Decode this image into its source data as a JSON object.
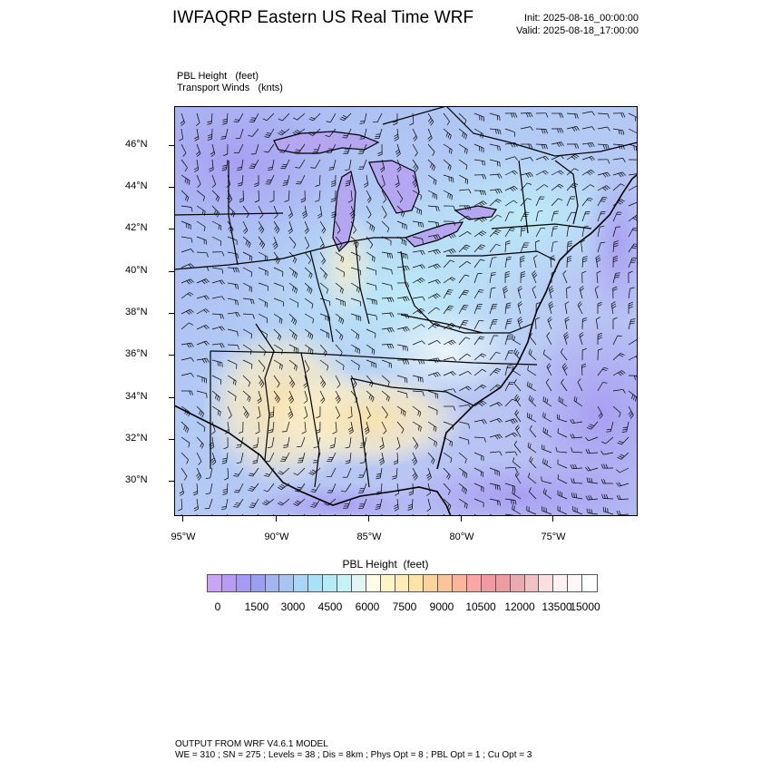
{
  "header": {
    "title": "IWFAQRP Eastern US Real Time WRF",
    "init": "Init: 2025-08-16_00:00:00",
    "valid": "Valid: 2025-08-18_17:00:00"
  },
  "subtitle": {
    "line1": "PBL Height   (feet)",
    "line2": "Transport Winds   (knts)"
  },
  "map": {
    "lat_labels": [
      "46°N",
      "44°N",
      "42°N",
      "40°N",
      "38°N",
      "36°N",
      "34°N",
      "32°N",
      "30°N"
    ],
    "lon_labels": [
      "95°W",
      "90°W",
      "85°W",
      "80°W",
      "75°W"
    ]
  },
  "colorbar": {
    "title": "PBL Height  (feet)",
    "colors": [
      "#c8a5f5",
      "#b89cf3",
      "#a49bf2",
      "#9b9ff0",
      "#a3b4f2",
      "#a7c4f3",
      "#a9d6f6",
      "#a6e3f8",
      "#b3ecf7",
      "#c7f1f7",
      "#e2f5f5",
      "#fffbe6",
      "#fdf5c6",
      "#fdecb5",
      "#fce3a6",
      "#fcd39b",
      "#fcc498",
      "#fcb59a",
      "#f9a6a4",
      "#f29aa1",
      "#eb9da3",
      "#eaaab0",
      "#f1c2c4",
      "#fbdfe0",
      "#fff0f2",
      "#fff7f7",
      "#ffffff"
    ],
    "labels": [
      "0",
      "1500",
      "3000",
      "4500",
      "6000",
      "7500",
      "9000",
      "10500",
      "12000",
      "13500",
      "15000"
    ]
  },
  "footer": {
    "line1": "OUTPUT FROM WRF V4.6.1 MODEL",
    "line2": "WE = 310 ; SN = 275 ; Levels = 38 ; Dis = 8km ; Phys Opt = 8 ; PBL Opt = 1 ; Cu Opt = 3"
  }
}
